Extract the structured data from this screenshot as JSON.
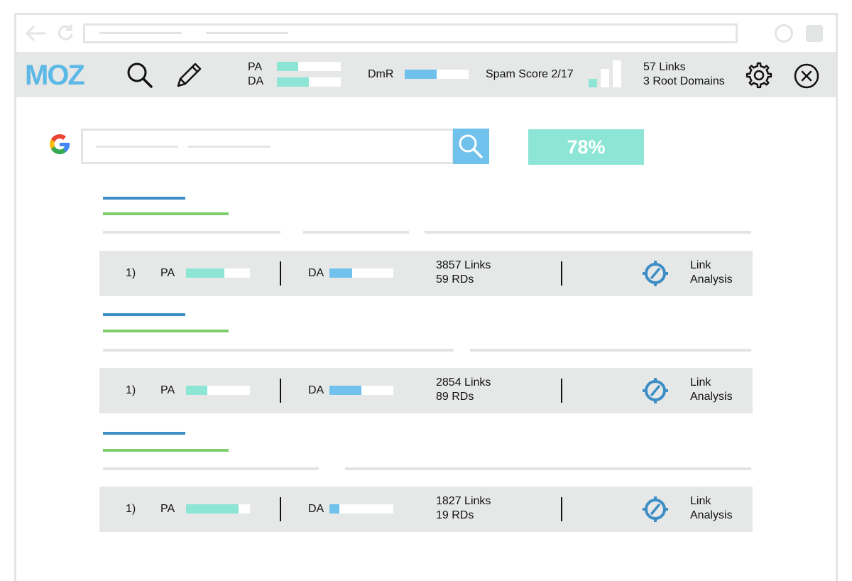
{
  "colors": {
    "moz_blue": "#5cb8e6",
    "teal": "#8de6d5",
    "bar_blue": "#70c1eb",
    "title_blue": "#3d8ec6",
    "title_green": "#7fcc6a",
    "toolbar_bg": "#e6e7e7",
    "placeholder_grey": "#e3e4e4"
  },
  "browser": {
    "back_icon": "arrow-left-icon",
    "refresh_icon": "refresh-icon"
  },
  "toolbar": {
    "logo": "MOZ",
    "pa_label": "PA",
    "da_label": "DA",
    "pa_fraction": 0.33,
    "da_fraction": 0.5,
    "dmr_label": "DmR",
    "dmr_fraction": 0.5,
    "spam_score_label": "Spam Score 2/17",
    "links_label": "57 Links",
    "root_domains_label": "3 Root Domains",
    "icons": [
      "search-icon",
      "pencil-icon",
      "gear-icon",
      "close-circle-icon"
    ]
  },
  "search": {
    "engine_icon": "google-icon",
    "score": "78%"
  },
  "results": [
    {
      "rank": "1)",
      "pa_label": "PA",
      "pa_fraction": 0.6,
      "da_label": "DA",
      "da_fraction": 0.35,
      "links": "3857 Links",
      "rds": "59 RDs",
      "analysis_line1": "Link",
      "analysis_line2": "Analysis"
    },
    {
      "rank": "1)",
      "pa_label": "PA",
      "pa_fraction": 0.33,
      "da_label": "DA",
      "da_fraction": 0.5,
      "links": "2854 Links",
      "rds": "89 RDs",
      "analysis_line1": "Link",
      "analysis_line2": "Analysis"
    },
    {
      "rank": "1)",
      "pa_label": "PA",
      "pa_fraction": 0.82,
      "da_label": "DA",
      "da_fraction": 0.15,
      "links": "1827 Links",
      "rds": "19 RDs",
      "analysis_line1": "Link",
      "analysis_line2": "Analysis"
    }
  ]
}
